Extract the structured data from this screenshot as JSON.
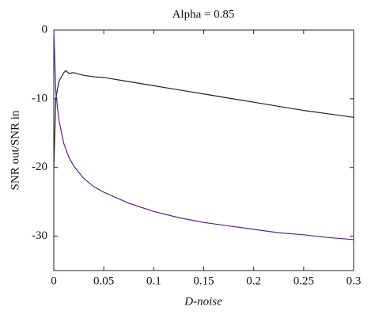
{
  "chart_data": {
    "type": "line",
    "title": "Alpha = 0.85",
    "xlabel": "D-noise",
    "ylabel": "SNR out/SNR in",
    "x": [
      0,
      0.002,
      0.005,
      0.01,
      0.012,
      0.015,
      0.02,
      0.03,
      0.04,
      0.05,
      0.075,
      0.1,
      0.125,
      0.15,
      0.175,
      0.2,
      0.225,
      0.25,
      0.275,
      0.3
    ],
    "series": [
      {
        "color": "#222222",
        "values": [
          -20,
          -10,
          -7.5,
          -6.2,
          -5.9,
          -6.3,
          -6.2,
          -6.6,
          -6.8,
          -6.9,
          -7.5,
          -8.1,
          -8.7,
          -9.3,
          -9.9,
          -10.5,
          -11.1,
          -11.7,
          -12.2,
          -12.7
        ]
      },
      {
        "color": "#4a2a96",
        "values": [
          0,
          -9,
          -13,
          -16.5,
          -17.3,
          -18.5,
          -19.8,
          -21.6,
          -22.8,
          -23.6,
          -25.2,
          -26.4,
          -27.3,
          -28,
          -28.5,
          -29,
          -29.5,
          -29.8,
          -30.2,
          -30.5
        ]
      }
    ],
    "xlim": [
      0,
      0.3
    ],
    "xticks": [
      0,
      0.05,
      0.1,
      0.15,
      0.2,
      0.25,
      0.3
    ],
    "ylim": [
      -35,
      0
    ],
    "yticks": [
      -30,
      -20,
      -10,
      0
    ],
    "grid": false
  }
}
